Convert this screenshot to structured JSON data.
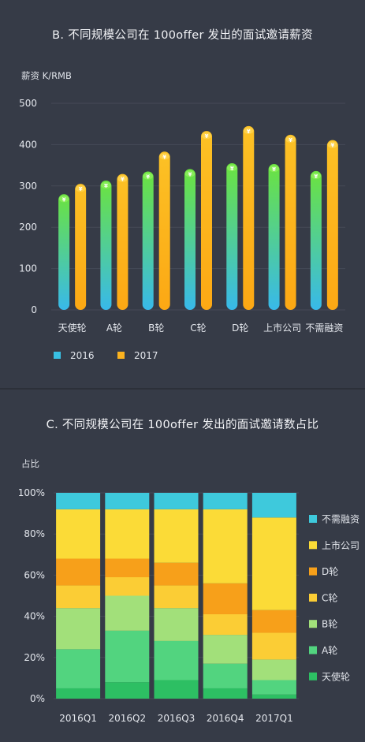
{
  "chart_data": [
    {
      "type": "bar",
      "title": "B.  不同规模公司在 100offer 发出的面试邀请薪资",
      "ylabel": "薪资 K/RMB",
      "xlabel": "",
      "ylim": [
        0,
        500
      ],
      "yticks": [
        "0",
        "100",
        "200",
        "300",
        "400",
        "500"
      ],
      "categories": [
        "天使轮",
        "A轮",
        "B轮",
        "C轮",
        "D轮",
        "上市公司",
        "不需融资"
      ],
      "series": [
        {
          "name": "2016",
          "color": "#38c0e4",
          "values": [
            280,
            313,
            335,
            341,
            355,
            353,
            336
          ]
        },
        {
          "name": "2017",
          "color": "#fbb21e",
          "values": [
            305,
            329,
            383,
            433,
            445,
            424,
            411
          ]
        }
      ],
      "cap_symbol": "¥",
      "grid": true,
      "legend_position": "bottom-left"
    },
    {
      "type": "bar",
      "stacked": true,
      "title": "C.  不同规模公司在 100offer 发出的面试邀请数占比",
      "ylabel": "占比",
      "xlabel": "",
      "ylim": [
        0,
        100
      ],
      "yticks": [
        "0%",
        "20%",
        "40%",
        "60%",
        "80%",
        "100%"
      ],
      "categories": [
        "2016Q1",
        "2016Q2",
        "2016Q3",
        "2016Q4",
        "2017Q1"
      ],
      "series": [
        {
          "name": "天使轮",
          "color": "#2dbf63",
          "values": [
            5,
            8,
            9,
            5,
            2
          ]
        },
        {
          "name": "A轮",
          "color": "#52d47f",
          "values": [
            19,
            25,
            19,
            12,
            7
          ]
        },
        {
          "name": "B轮",
          "color": "#a2e07a",
          "values": [
            20,
            17,
            16,
            14,
            10
          ]
        },
        {
          "name": "C轮",
          "color": "#fbcd35",
          "values": [
            11,
            9,
            11,
            10,
            13
          ]
        },
        {
          "name": "D轮",
          "color": "#f7a01a",
          "values": [
            13,
            9,
            11,
            15,
            11
          ]
        },
        {
          "name": "上市公司",
          "color": "#fbdb37",
          "values": [
            24,
            24,
            26,
            36,
            45
          ]
        },
        {
          "name": "不需融资",
          "color": "#3ec9dc",
          "values": [
            8,
            8,
            8,
            8,
            12
          ]
        }
      ],
      "grid": true,
      "legend_position": "right"
    }
  ]
}
